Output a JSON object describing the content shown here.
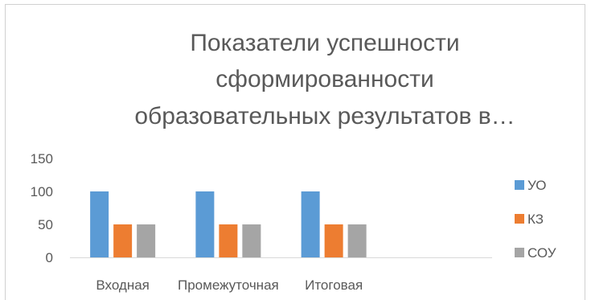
{
  "chart_data": {
    "type": "bar",
    "title_lines": [
      "Показатели успешности",
      "сформированности",
      "образовательных результатов в…"
    ],
    "categories": [
      "Входная",
      "Промежуточная",
      "Итоговая",
      ""
    ],
    "series": [
      {
        "name": "УО",
        "values": [
          100,
          100,
          100,
          null
        ],
        "color": "#5b9bd5"
      },
      {
        "name": "КЗ",
        "values": [
          50,
          50,
          50,
          null
        ],
        "color": "#ed7d31"
      },
      {
        "name": "СОУ",
        "values": [
          50,
          50,
          50,
          null
        ],
        "color": "#a5a5a5"
      }
    ],
    "ylim": [
      0,
      150
    ],
    "yticks": [
      "0",
      "50",
      "100",
      "150"
    ],
    "grid": false,
    "legend_position": "right"
  }
}
